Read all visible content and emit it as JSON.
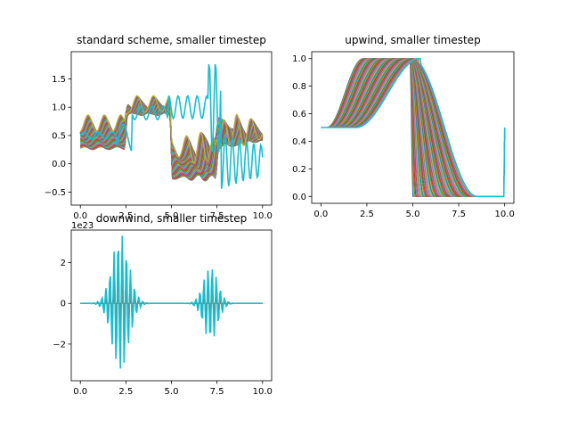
{
  "figure": {
    "background": "#ffffff"
  },
  "chart_data": [
    {
      "id": "standard",
      "type": "line",
      "title": "standard scheme, smaller timestep",
      "xlabel": "",
      "ylabel": "",
      "xlim": [
        -0.5,
        10.5
      ],
      "ylim": [
        -0.73,
        1.98
      ],
      "xticks": [
        0.0,
        2.5,
        5.0,
        7.5,
        10.0
      ],
      "xtick_labels": [
        "0.0",
        "2.5",
        "5.0",
        "7.5",
        "10.0"
      ],
      "yticks": [
        -0.5,
        0.0,
        0.5,
        1.0,
        1.5
      ],
      "ytick_labels": [
        "−0.5",
        "0.0",
        "0.5",
        "1.0",
        "1.5"
      ],
      "series_count": 60,
      "description_of_series": "time snapshots of advected profile; later snapshots develop oscillations",
      "final_series_color": "#17becf"
    },
    {
      "id": "upwind",
      "type": "line",
      "title": "upwind, smaller timestep",
      "xlabel": "",
      "ylabel": "",
      "xlim": [
        -0.5,
        10.5
      ],
      "ylim": [
        -0.05,
        1.05
      ],
      "xticks": [
        0.0,
        2.5,
        5.0,
        7.5,
        10.0
      ],
      "xtick_labels": [
        "0.0",
        "2.5",
        "5.0",
        "7.5",
        "10.0"
      ],
      "yticks": [
        0.0,
        0.2,
        0.4,
        0.6,
        0.8,
        1.0
      ],
      "ytick_labels": [
        "0.0",
        "0.2",
        "0.4",
        "0.6",
        "0.8",
        "1.0"
      ],
      "series_count": 60,
      "final_series_color": "#17becf"
    },
    {
      "id": "downwind",
      "type": "line",
      "title": "downwind, smaller timestep",
      "offset_label": "1e23",
      "xlabel": "",
      "ylabel": "",
      "xlim": [
        -0.5,
        10.5
      ],
      "ylim": [
        -3.8,
        3.6
      ],
      "xticks": [
        0.0,
        2.5,
        5.0,
        7.5,
        10.0
      ],
      "xtick_labels": [
        "0.0",
        "2.5",
        "5.0",
        "7.5",
        "10.0"
      ],
      "yticks": [
        -2,
        0,
        2
      ],
      "ytick_labels": [
        "−2",
        "0",
        "2"
      ],
      "series_count": 60,
      "peak_amplitude": 3.4,
      "second_peak_amplitude": 1.8,
      "final_series_color": "#17becf"
    }
  ],
  "palette": [
    "#1f77b4",
    "#ff7f0e",
    "#2ca02c",
    "#d62728",
    "#9467bd",
    "#8c564b",
    "#e377c2",
    "#7f7f7f",
    "#bcbd22",
    "#17becf"
  ]
}
